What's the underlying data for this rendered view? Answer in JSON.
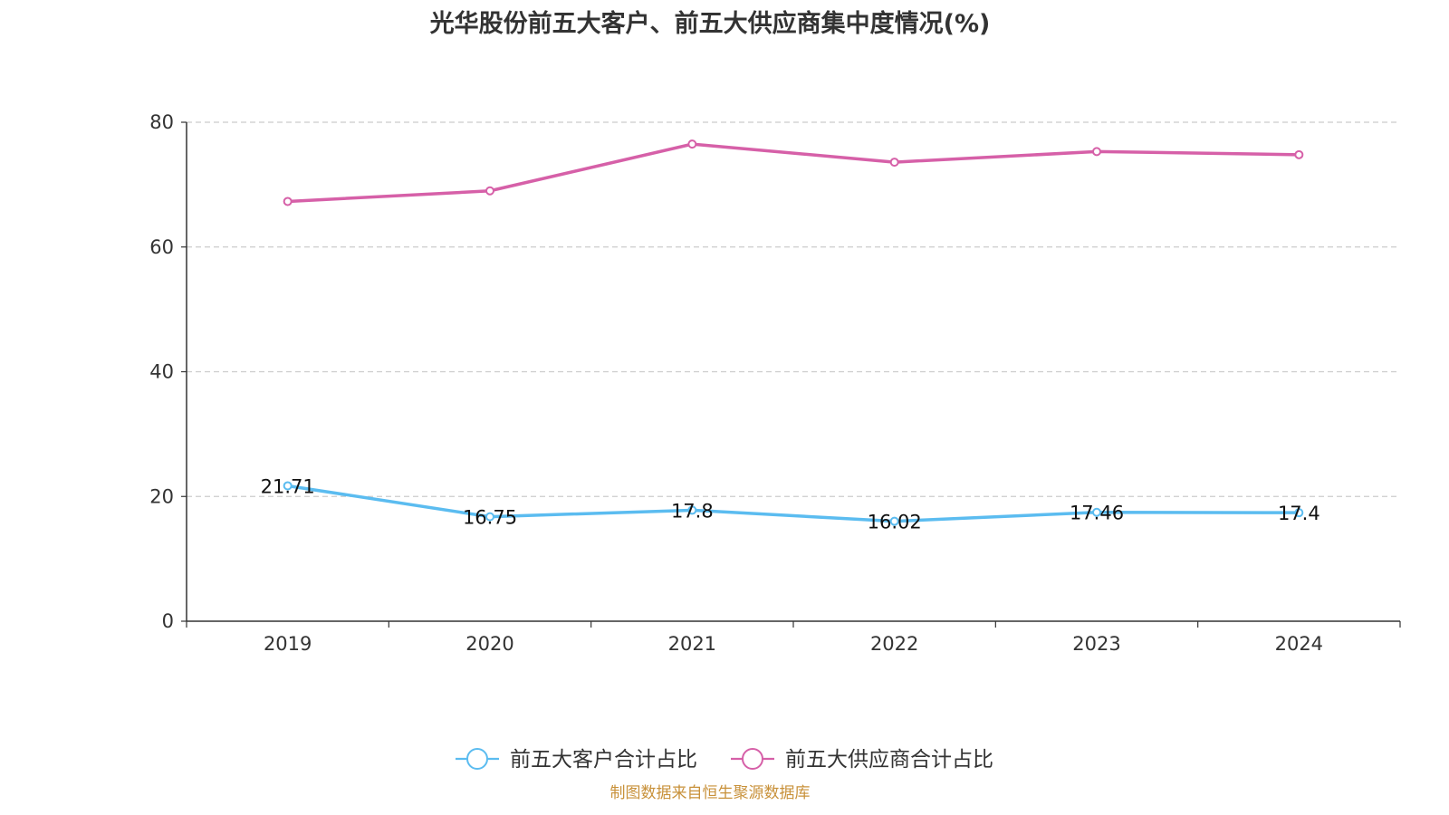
{
  "chart_data": {
    "type": "line",
    "title": "光华股份前五大客户、前五大供应商集中度情况(%)",
    "x": [
      "2019",
      "2020",
      "2021",
      "2022",
      "2023",
      "2024"
    ],
    "series": [
      {
        "name": "前五大客户合计占比",
        "color": "#5bbcf0",
        "values": [
          21.71,
          16.75,
          17.8,
          16.02,
          17.46,
          17.4
        ],
        "show_labels": true
      },
      {
        "name": "前五大供应商合计占比",
        "color": "#d660a8",
        "values": [
          67.3,
          69.0,
          76.5,
          73.6,
          75.3,
          74.8
        ],
        "show_labels": false
      }
    ],
    "ylim": [
      0,
      80
    ],
    "yticks": [
      0,
      20,
      40,
      60,
      80
    ],
    "grid": true,
    "legend_position": "bottom"
  },
  "source": "制图数据来自恒生聚源数据库"
}
